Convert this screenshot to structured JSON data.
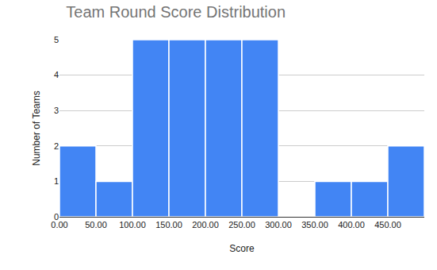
{
  "chart_data": {
    "type": "histogram",
    "title": "Team Round Score Distribution",
    "x_label": "Score",
    "y_label": "Number of Teams",
    "bins": [
      0,
      50,
      100,
      150,
      200,
      250,
      300,
      350,
      400,
      450,
      500
    ],
    "values": [
      2,
      1,
      5,
      5,
      5,
      5,
      0,
      1,
      1,
      2
    ],
    "color": "#4285f4",
    "xlim": [
      0,
      500
    ],
    "xticks": [
      {
        "value": 0,
        "label": "0.00"
      },
      {
        "value": 50,
        "label": "50.00"
      },
      {
        "value": 100,
        "label": "100.00"
      },
      {
        "value": 150,
        "label": "150.00"
      },
      {
        "value": 200,
        "label": "200.00"
      },
      {
        "value": 250,
        "label": "250.00"
      },
      {
        "value": 300,
        "label": "300.00"
      },
      {
        "value": 350,
        "label": "350.00"
      },
      {
        "value": 400,
        "label": "400.00"
      },
      {
        "value": 450,
        "label": "450.00"
      }
    ],
    "ylim": [
      0,
      5
    ],
    "yticks": [
      0,
      1,
      2,
      3,
      4,
      5
    ],
    "grid": true
  }
}
